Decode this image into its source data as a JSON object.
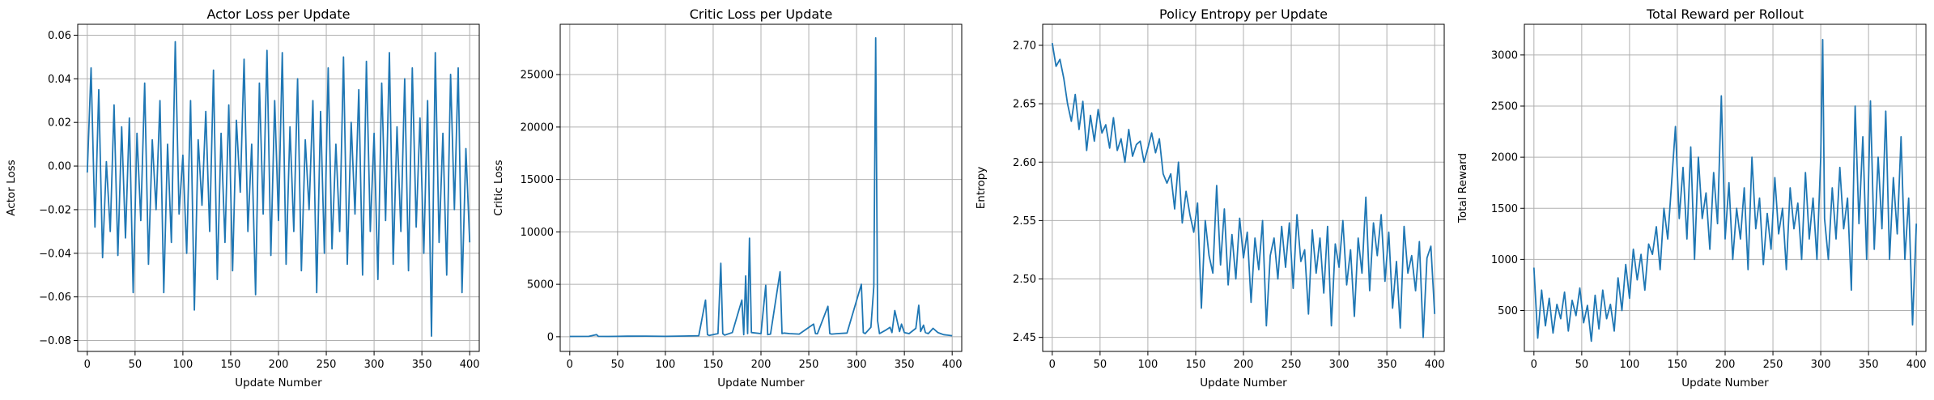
{
  "colors": {
    "line": "#1f77b4",
    "grid": "#b0b0b0",
    "axis": "#000000"
  },
  "chart_data": [
    {
      "type": "line",
      "title": "Actor Loss per Update",
      "xlabel": "Update Number",
      "ylabel": "Actor Loss",
      "xlim": [
        -10,
        410
      ],
      "ylim": [
        -0.085,
        0.065
      ],
      "xticks": [
        0,
        50,
        100,
        150,
        200,
        250,
        300,
        350,
        400
      ],
      "xtick_labels": [
        "0",
        "50",
        "100",
        "150",
        "200",
        "250",
        "300",
        "350",
        "400"
      ],
      "yticks": [
        -0.08,
        -0.06,
        -0.04,
        -0.02,
        0.0,
        0.02,
        0.04,
        0.06
      ],
      "ytick_labels": [
        "−0.08",
        "−0.06",
        "−0.04",
        "−0.02",
        "0.00",
        "0.02",
        "0.04",
        "0.06"
      ],
      "grid": true,
      "series": [
        {
          "x": [
            0,
            4,
            8,
            12,
            16,
            20,
            24,
            28,
            32,
            36,
            40,
            44,
            48,
            52,
            56,
            60,
            64,
            68,
            72,
            76,
            80,
            84,
            88,
            92,
            96,
            100,
            104,
            108,
            112,
            116,
            120,
            124,
            128,
            132,
            136,
            140,
            144,
            148,
            152,
            156,
            160,
            164,
            168,
            172,
            176,
            180,
            184,
            188,
            192,
            196,
            200,
            204,
            208,
            212,
            216,
            220,
            224,
            228,
            232,
            236,
            240,
            244,
            248,
            252,
            256,
            260,
            264,
            268,
            272,
            276,
            280,
            284,
            288,
            292,
            296,
            300,
            304,
            308,
            312,
            316,
            320,
            324,
            328,
            332,
            336,
            340,
            344,
            348,
            352,
            356,
            360,
            364,
            368,
            372,
            376,
            380,
            384,
            388,
            392,
            396,
            400
          ],
          "values": [
            -0.003,
            0.045,
            -0.028,
            0.035,
            -0.042,
            0.002,
            -0.03,
            0.028,
            -0.041,
            0.018,
            -0.033,
            0.022,
            -0.058,
            0.015,
            -0.025,
            0.038,
            -0.045,
            0.012,
            -0.02,
            0.03,
            -0.058,
            0.01,
            -0.035,
            0.057,
            -0.022,
            0.005,
            -0.04,
            0.03,
            -0.066,
            0.012,
            -0.018,
            0.025,
            -0.03,
            0.044,
            -0.052,
            0.015,
            -0.035,
            0.028,
            -0.048,
            0.021,
            -0.012,
            0.049,
            -0.03,
            0.01,
            -0.059,
            0.038,
            -0.022,
            0.053,
            -0.041,
            0.03,
            -0.025,
            0.052,
            -0.045,
            0.018,
            -0.03,
            0.04,
            -0.048,
            0.012,
            -0.02,
            0.03,
            -0.058,
            0.025,
            -0.04,
            0.045,
            -0.038,
            0.01,
            -0.03,
            0.05,
            -0.045,
            0.02,
            -0.022,
            0.035,
            -0.05,
            0.048,
            -0.03,
            0.015,
            -0.052,
            0.038,
            -0.025,
            0.052,
            -0.045,
            0.018,
            -0.03,
            0.04,
            -0.048,
            0.045,
            -0.028,
            0.022,
            -0.04,
            0.03,
            -0.078,
            0.052,
            -0.035,
            0.015,
            -0.05,
            0.042,
            -0.02,
            0.045,
            -0.058,
            0.008,
            -0.035
          ]
        }
      ]
    },
    {
      "type": "line",
      "title": "Critic Loss per Update",
      "xlabel": "Update Number",
      "ylabel": "Critic Loss",
      "xlim": [
        -10,
        410
      ],
      "ylim": [
        -1400,
        29800
      ],
      "xticks": [
        0,
        50,
        100,
        150,
        200,
        250,
        300,
        350,
        400
      ],
      "xtick_labels": [
        "0",
        "50",
        "100",
        "150",
        "200",
        "250",
        "300",
        "350",
        "400"
      ],
      "yticks": [
        0,
        5000,
        10000,
        15000,
        20000,
        25000
      ],
      "ytick_labels": [
        "0",
        "5000",
        "10000",
        "15000",
        "20000",
        "25000"
      ],
      "grid": true,
      "series": [
        {
          "x": [
            0,
            20,
            28,
            30,
            40,
            60,
            80,
            100,
            120,
            135,
            142,
            144,
            146,
            155,
            158,
            160,
            162,
            170,
            180,
            182,
            184,
            186,
            188,
            190,
            200,
            205,
            207,
            210,
            220,
            222,
            224,
            230,
            240,
            255,
            257,
            259,
            270,
            272,
            274,
            280,
            290,
            305,
            307,
            309,
            315,
            318,
            320,
            322,
            324,
            330,
            335,
            337,
            340,
            345,
            347,
            350,
            355,
            362,
            365,
            367,
            370,
            372,
            375,
            380,
            385,
            388,
            391,
            395,
            400
          ],
          "values": [
            30,
            40,
            200,
            40,
            30,
            50,
            60,
            40,
            70,
            100,
            3500,
            200,
            120,
            300,
            7000,
            300,
            150,
            400,
            3500,
            200,
            5800,
            300,
            9400,
            400,
            300,
            4900,
            200,
            250,
            6200,
            300,
            350,
            300,
            250,
            1200,
            300,
            280,
            2900,
            300,
            250,
            300,
            350,
            5000,
            400,
            300,
            900,
            4800,
            28500,
            1500,
            300,
            600,
            900,
            400,
            2500,
            500,
            1200,
            400,
            300,
            800,
            3000,
            500,
            1100,
            400,
            300,
            800,
            400,
            300,
            200,
            150,
            100
          ]
        }
      ]
    },
    {
      "type": "line",
      "title": "Policy Entropy per Update",
      "xlabel": "Update Number",
      "ylabel": "Entropy",
      "xlim": [
        -10,
        410
      ],
      "ylim": [
        2.438,
        2.718
      ],
      "xticks": [
        0,
        50,
        100,
        150,
        200,
        250,
        300,
        350,
        400
      ],
      "xtick_labels": [
        "0",
        "50",
        "100",
        "150",
        "200",
        "250",
        "300",
        "350",
        "400"
      ],
      "yticks": [
        2.45,
        2.5,
        2.55,
        2.6,
        2.65,
        2.7
      ],
      "ytick_labels": [
        "2.45",
        "2.50",
        "2.55",
        "2.60",
        "2.65",
        "2.70"
      ],
      "grid": true,
      "series": [
        {
          "x": [
            0,
            4,
            8,
            12,
            16,
            20,
            24,
            28,
            32,
            36,
            40,
            44,
            48,
            52,
            56,
            60,
            64,
            68,
            72,
            76,
            80,
            84,
            88,
            92,
            96,
            100,
            104,
            108,
            112,
            116,
            120,
            124,
            128,
            132,
            136,
            140,
            144,
            148,
            152,
            156,
            160,
            164,
            168,
            172,
            176,
            180,
            184,
            188,
            192,
            196,
            200,
            204,
            208,
            212,
            216,
            220,
            224,
            228,
            232,
            236,
            240,
            244,
            248,
            252,
            256,
            260,
            264,
            268,
            272,
            276,
            280,
            284,
            288,
            292,
            296,
            300,
            304,
            308,
            312,
            316,
            320,
            324,
            328,
            332,
            336,
            340,
            344,
            348,
            352,
            356,
            360,
            364,
            368,
            372,
            376,
            380,
            384,
            388,
            392,
            396,
            400
          ],
          "values": [
            2.702,
            2.682,
            2.688,
            2.672,
            2.65,
            2.635,
            2.658,
            2.628,
            2.652,
            2.61,
            2.64,
            2.618,
            2.645,
            2.625,
            2.632,
            2.612,
            2.638,
            2.61,
            2.62,
            2.6,
            2.628,
            2.605,
            2.615,
            2.618,
            2.6,
            2.612,
            2.625,
            2.608,
            2.62,
            2.59,
            2.582,
            2.59,
            2.56,
            2.6,
            2.548,
            2.575,
            2.555,
            2.54,
            2.565,
            2.475,
            2.55,
            2.52,
            2.505,
            2.58,
            2.512,
            2.56,
            2.495,
            2.538,
            2.5,
            2.552,
            2.518,
            2.54,
            2.48,
            2.535,
            2.508,
            2.55,
            2.46,
            2.52,
            2.535,
            2.5,
            2.545,
            2.51,
            2.548,
            2.492,
            2.555,
            2.515,
            2.525,
            2.47,
            2.542,
            2.505,
            2.535,
            2.488,
            2.545,
            2.46,
            2.53,
            2.51,
            2.55,
            2.495,
            2.525,
            2.468,
            2.535,
            2.505,
            2.57,
            2.49,
            2.548,
            2.52,
            2.555,
            2.498,
            2.54,
            2.475,
            2.515,
            2.458,
            2.545,
            2.505,
            2.52,
            2.49,
            2.532,
            2.45,
            2.518,
            2.528,
            2.47
          ]
        }
      ]
    },
    {
      "type": "line",
      "title": "Total Reward per Rollout",
      "xlabel": "Update Number",
      "ylabel": "Total Reward",
      "xlim": [
        -10,
        410
      ],
      "ylim": [
        100,
        3300
      ],
      "xticks": [
        0,
        50,
        100,
        150,
        200,
        250,
        300,
        350,
        400
      ],
      "xtick_labels": [
        "0",
        "50",
        "100",
        "150",
        "200",
        "250",
        "300",
        "350",
        "400"
      ],
      "yticks": [
        500,
        1000,
        1500,
        2000,
        2500,
        3000
      ],
      "ytick_labels": [
        "500",
        "1000",
        "1500",
        "2000",
        "2500",
        "3000"
      ],
      "grid": true,
      "series": [
        {
          "x": [
            0,
            4,
            8,
            12,
            16,
            20,
            24,
            28,
            32,
            36,
            40,
            44,
            48,
            52,
            56,
            60,
            64,
            68,
            72,
            76,
            80,
            84,
            88,
            92,
            96,
            100,
            104,
            108,
            112,
            116,
            120,
            124,
            128,
            132,
            136,
            140,
            144,
            148,
            152,
            156,
            160,
            164,
            168,
            172,
            176,
            180,
            184,
            188,
            192,
            196,
            200,
            204,
            208,
            212,
            216,
            220,
            224,
            228,
            232,
            236,
            240,
            244,
            248,
            252,
            256,
            260,
            264,
            268,
            272,
            276,
            280,
            284,
            288,
            292,
            296,
            300,
            302,
            304,
            308,
            312,
            316,
            320,
            324,
            328,
            332,
            336,
            340,
            344,
            348,
            352,
            356,
            360,
            364,
            368,
            372,
            376,
            380,
            384,
            388,
            392,
            396,
            400
          ],
          "values": [
            920,
            230,
            700,
            350,
            620,
            280,
            560,
            420,
            680,
            300,
            600,
            450,
            720,
            380,
            550,
            200,
            650,
            320,
            700,
            420,
            560,
            300,
            820,
            500,
            950,
            620,
            1100,
            800,
            1050,
            700,
            1150,
            1050,
            1320,
            900,
            1500,
            1200,
            1750,
            2300,
            1400,
            1900,
            1200,
            2100,
            1000,
            2000,
            1400,
            1650,
            1100,
            1850,
            1350,
            2600,
            1200,
            1750,
            1000,
            1500,
            1200,
            1700,
            900,
            2000,
            1300,
            1600,
            950,
            1450,
            1100,
            1800,
            1250,
            1500,
            900,
            1700,
            1300,
            1550,
            1000,
            1850,
            1200,
            1600,
            1000,
            2000,
            3150,
            1400,
            1000,
            1700,
            1200,
            1900,
            1300,
            1600,
            700,
            2500,
            1350,
            2200,
            1000,
            2550,
            1100,
            2000,
            1300,
            2450,
            1000,
            1800,
            1250,
            2200,
            1000,
            1600,
            360,
            1350
          ]
        }
      ]
    }
  ]
}
